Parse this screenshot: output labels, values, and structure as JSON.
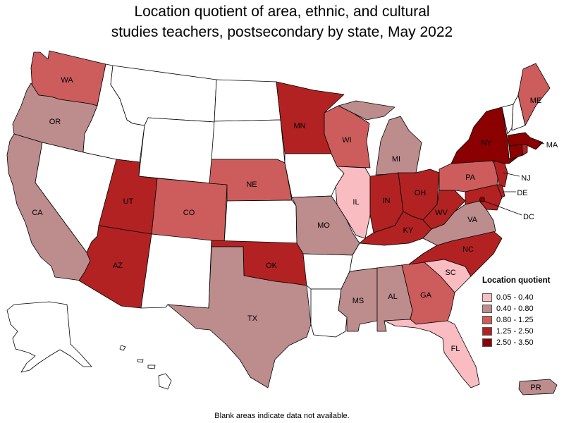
{
  "title": {
    "line1": "Location quotient of area, ethnic, and cultural",
    "line2": "studies teachers, postsecondary by state, May 2022"
  },
  "legend": {
    "title": "Location quotient",
    "items": [
      {
        "label": "0.05 - 0.40",
        "color": "#f9bcc0"
      },
      {
        "label": "0.40 - 0.80",
        "color": "#bd8c8c"
      },
      {
        "label": "0.80 - 1.25",
        "color": "#cd5c5c"
      },
      {
        "label": "1.25 - 2.50",
        "color": "#b22222"
      },
      {
        "label": "2.50 - 3.50",
        "color": "#8b0000"
      }
    ]
  },
  "no_data_color": "#ffffff",
  "footnote": "Blank areas indicate data not available.",
  "states": [
    {
      "abbr": "WA",
      "label": "WA",
      "class": 2
    },
    {
      "abbr": "OR",
      "label": "OR",
      "class": 1
    },
    {
      "abbr": "CA",
      "label": "CA",
      "class": 1
    },
    {
      "abbr": "NV",
      "label": "",
      "class": null
    },
    {
      "abbr": "ID",
      "label": "",
      "class": null
    },
    {
      "abbr": "MT",
      "label": "",
      "class": null
    },
    {
      "abbr": "WY",
      "label": "",
      "class": null
    },
    {
      "abbr": "UT",
      "label": "UT",
      "class": 3
    },
    {
      "abbr": "AZ",
      "label": "AZ",
      "class": 3
    },
    {
      "abbr": "CO",
      "label": "CO",
      "class": 2
    },
    {
      "abbr": "NM",
      "label": "",
      "class": null
    },
    {
      "abbr": "ND",
      "label": "",
      "class": null
    },
    {
      "abbr": "SD",
      "label": "",
      "class": null
    },
    {
      "abbr": "NE",
      "label": "NE",
      "class": 2
    },
    {
      "abbr": "KS",
      "label": "",
      "class": null
    },
    {
      "abbr": "OK",
      "label": "OK",
      "class": 3
    },
    {
      "abbr": "TX",
      "label": "TX",
      "class": 1
    },
    {
      "abbr": "MN",
      "label": "MN",
      "class": 3
    },
    {
      "abbr": "IA",
      "label": "",
      "class": null
    },
    {
      "abbr": "MO",
      "label": "MO",
      "class": 1
    },
    {
      "abbr": "AR",
      "label": "",
      "class": null
    },
    {
      "abbr": "LA",
      "label": "",
      "class": null
    },
    {
      "abbr": "WI",
      "label": "WI",
      "class": 2
    },
    {
      "abbr": "IL",
      "label": "IL",
      "class": 0
    },
    {
      "abbr": "MI",
      "label": "MI",
      "class": 1
    },
    {
      "abbr": "IN",
      "label": "IN",
      "class": 3
    },
    {
      "abbr": "OH",
      "label": "OH",
      "class": 3
    },
    {
      "abbr": "KY",
      "label": "KY",
      "class": 3
    },
    {
      "abbr": "TN",
      "label": "",
      "class": null
    },
    {
      "abbr": "MS",
      "label": "MS",
      "class": 1
    },
    {
      "abbr": "AL",
      "label": "AL",
      "class": 1
    },
    {
      "abbr": "GA",
      "label": "GA",
      "class": 2
    },
    {
      "abbr": "FL",
      "label": "FL",
      "class": 0
    },
    {
      "abbr": "SC",
      "label": "SC",
      "class": 0
    },
    {
      "abbr": "NC",
      "label": "NC",
      "class": 3
    },
    {
      "abbr": "VA",
      "label": "VA",
      "class": 1
    },
    {
      "abbr": "WV",
      "label": "WV",
      "class": 3
    },
    {
      "abbr": "PA",
      "label": "PA",
      "class": 2
    },
    {
      "abbr": "NY",
      "label": "NY",
      "class": 4
    },
    {
      "abbr": "NJ",
      "label": "NJ",
      "class": 3
    },
    {
      "abbr": "DE",
      "label": "DE",
      "class": 3
    },
    {
      "abbr": "MD",
      "label": "",
      "class": 3
    },
    {
      "abbr": "DC",
      "label": "DC",
      "class": 4
    },
    {
      "abbr": "VT",
      "label": "",
      "class": null
    },
    {
      "abbr": "NH",
      "label": "",
      "class": null
    },
    {
      "abbr": "ME",
      "label": "ME",
      "class": 2
    },
    {
      "abbr": "MA",
      "label": "MA",
      "class": 4
    },
    {
      "abbr": "CT",
      "label": "",
      "class": 4
    },
    {
      "abbr": "RI",
      "label": "",
      "class": 3
    },
    {
      "abbr": "AK",
      "label": "",
      "class": null
    },
    {
      "abbr": "HI",
      "label": "",
      "class": null
    },
    {
      "abbr": "PR",
      "label": "PR",
      "class": 1
    }
  ]
}
